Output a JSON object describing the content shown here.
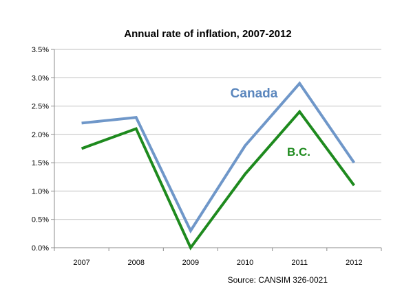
{
  "chart_data": {
    "type": "line",
    "title": "Annual rate of inflation, 2007-2012",
    "xlabel": "",
    "ylabel": "",
    "categories": [
      "2007",
      "2008",
      "2009",
      "2010",
      "2011",
      "2012"
    ],
    "series": [
      {
        "name": "Canada",
        "color": "#6f97c9",
        "label_color": "#5a86bd",
        "values": [
          2.2,
          2.3,
          0.3,
          1.8,
          2.9,
          1.5
        ]
      },
      {
        "name": "B.C.",
        "color": "#1e8a1e",
        "label_color": "#1e8a1e",
        "values": [
          1.75,
          2.1,
          0.0,
          1.3,
          2.4,
          1.1
        ]
      }
    ],
    "ylim": [
      0,
      3.5
    ],
    "yticks": [
      "0.0%",
      "0.5%",
      "1.0%",
      "1.5%",
      "2.0%",
      "2.5%",
      "3.0%",
      "3.5%"
    ],
    "grid": true,
    "source": "Source: CANSIM 326-0021"
  }
}
